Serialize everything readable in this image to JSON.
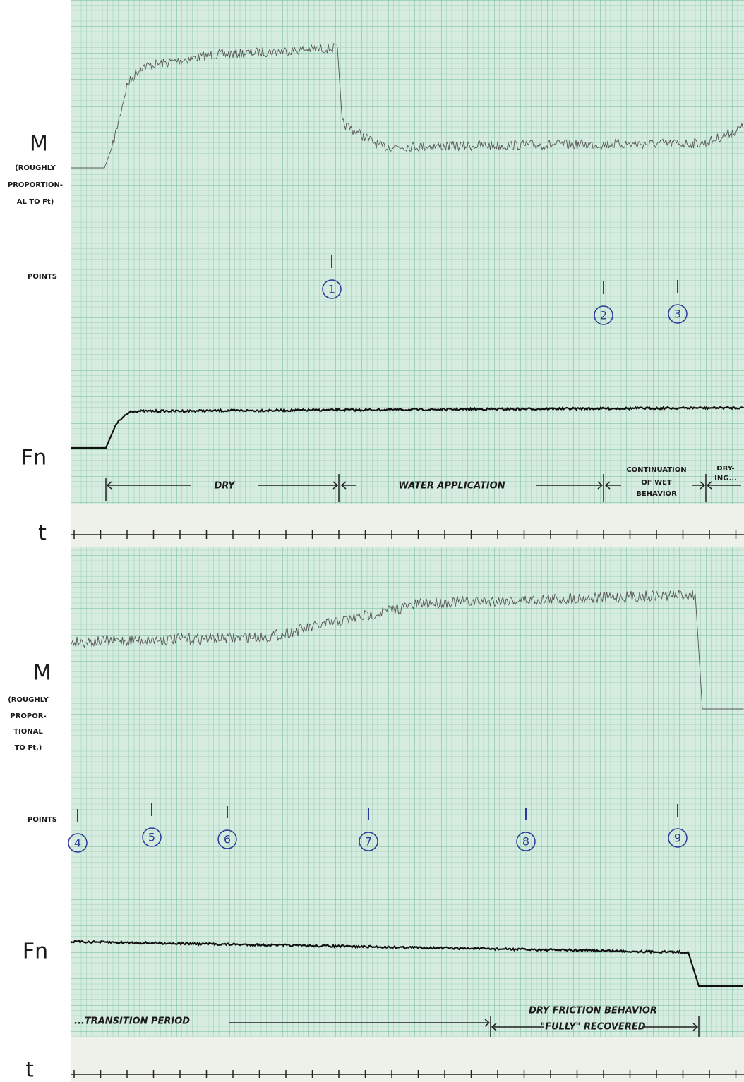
{
  "top": {
    "m_label": "M",
    "m_note": [
      "(ROUGHLY",
      "PROPORTION-",
      "AL TO Ft)"
    ],
    "points_label": "POINTS",
    "fn_label": "Fn",
    "t_label": "t",
    "points": [
      "1",
      "2",
      "3"
    ],
    "periods": {
      "dry": "DRY",
      "water": "WATER APPLICATION",
      "continuation": [
        "CONTINUATION",
        "OF WET",
        "BEHAVIOR"
      ],
      "drying": [
        "DRY-",
        "ING..."
      ]
    }
  },
  "bottom": {
    "m_label": "M",
    "m_note": [
      "(ROUGHLY",
      "PROPOR-",
      "TIONAL",
      "TO Ft.)"
    ],
    "points_label": "POINTS",
    "fn_label": "Fn",
    "t_label": "t",
    "points": [
      "4",
      "5",
      "6",
      "7",
      "8",
      "9"
    ],
    "periods": {
      "transition": "...TRANSITION PERIOD",
      "recovered": [
        "DRY FRICTION BEHAVIOR",
        "\"FULLY\" RECOVERED"
      ]
    }
  }
}
